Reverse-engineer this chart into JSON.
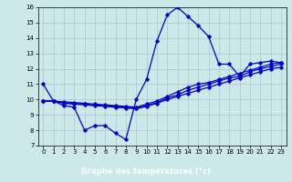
{
  "title": "Graphe des températures (°c)",
  "background_color": "#cce8e8",
  "plot_bg_color": "#cce8e8",
  "xlabel_bg_color": "#0000aa",
  "line_color": "#0000cc",
  "grid_color": "#aabccc",
  "xlim": [
    -0.5,
    23.5
  ],
  "ylim": [
    7,
    16
  ],
  "yticks": [
    7,
    8,
    9,
    10,
    11,
    12,
    13,
    14,
    15,
    16
  ],
  "xticks": [
    0,
    1,
    2,
    3,
    4,
    5,
    6,
    7,
    8,
    9,
    10,
    11,
    12,
    13,
    14,
    15,
    16,
    17,
    18,
    19,
    20,
    21,
    22,
    23
  ],
  "series": [
    {
      "x": [
        0,
        1,
        2,
        3,
        4,
        5,
        6,
        7,
        8,
        9,
        10,
        11,
        12,
        13,
        14,
        15,
        16,
        17,
        18,
        19,
        20,
        21,
        22,
        23
      ],
      "y": [
        11.0,
        9.9,
        9.6,
        9.5,
        8.0,
        8.3,
        8.3,
        7.8,
        7.4,
        10.0,
        11.3,
        13.8,
        15.5,
        16.0,
        15.4,
        14.8,
        14.1,
        12.3,
        12.3,
        11.5,
        12.3,
        12.4,
        12.5,
        12.4
      ]
    },
    {
      "x": [
        0,
        1,
        2,
        3,
        4,
        5,
        6,
        7,
        8,
        9,
        10,
        11,
        12,
        13,
        14,
        15,
        16,
        17,
        18,
        19,
        20,
        21,
        22,
        23
      ],
      "y": [
        9.9,
        9.9,
        9.85,
        9.8,
        9.75,
        9.7,
        9.65,
        9.6,
        9.55,
        9.5,
        9.7,
        9.9,
        10.2,
        10.5,
        10.8,
        11.0,
        11.1,
        11.3,
        11.5,
        11.7,
        11.9,
        12.1,
        12.3,
        12.4
      ]
    },
    {
      "x": [
        0,
        1,
        2,
        3,
        4,
        5,
        6,
        7,
        8,
        9,
        10,
        11,
        12,
        13,
        14,
        15,
        16,
        17,
        18,
        19,
        20,
        21,
        22,
        23
      ],
      "y": [
        9.9,
        9.9,
        9.8,
        9.75,
        9.7,
        9.65,
        9.6,
        9.55,
        9.5,
        9.45,
        9.6,
        9.8,
        10.1,
        10.3,
        10.6,
        10.8,
        11.0,
        11.2,
        11.4,
        11.5,
        11.8,
        12.0,
        12.15,
        12.3
      ]
    },
    {
      "x": [
        0,
        1,
        2,
        3,
        4,
        5,
        6,
        7,
        8,
        9,
        10,
        11,
        12,
        13,
        14,
        15,
        16,
        17,
        18,
        19,
        20,
        21,
        22,
        23
      ],
      "y": [
        9.9,
        9.9,
        9.75,
        9.7,
        9.65,
        9.6,
        9.55,
        9.5,
        9.45,
        9.4,
        9.55,
        9.75,
        10.0,
        10.2,
        10.4,
        10.6,
        10.8,
        11.0,
        11.2,
        11.4,
        11.6,
        11.8,
        12.0,
        12.1
      ]
    }
  ],
  "marker": "D",
  "marker_size": 1.8,
  "linewidth": 0.9,
  "tick_fontsize": 5.0,
  "xlabel_fontsize": 6.0
}
